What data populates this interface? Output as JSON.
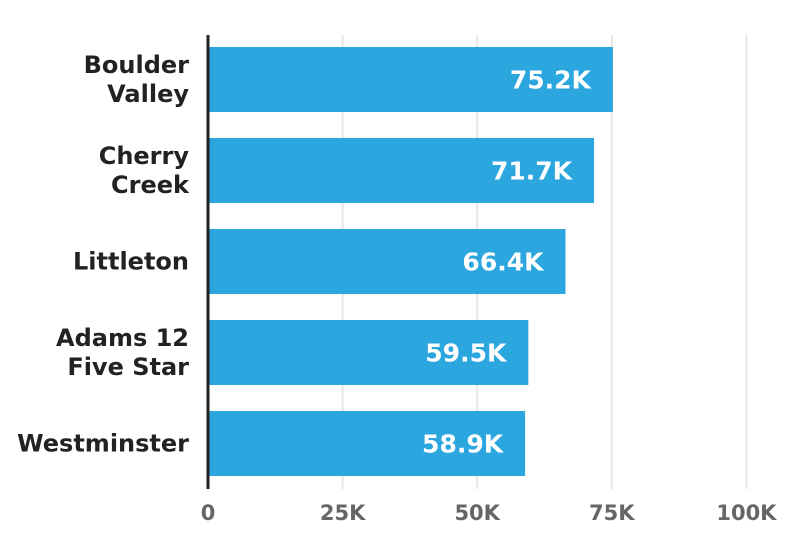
{
  "chart_data": {
    "type": "bar",
    "orientation": "horizontal",
    "categories": [
      [
        "Boulder",
        "Valley"
      ],
      [
        "Cherry",
        "Creek"
      ],
      [
        "Littleton"
      ],
      [
        "Adams 12",
        "Five Star"
      ],
      [
        "Westminster"
      ]
    ],
    "values": [
      75200,
      71700,
      66400,
      59500,
      58900
    ],
    "data_labels": [
      "75.2K",
      "71.7K",
      "66.4K",
      "59.5K",
      "58.9K"
    ],
    "xlim": [
      0,
      100000
    ],
    "xticks": [
      0,
      25000,
      50000,
      75000,
      100000
    ],
    "xtick_labels": [
      "0",
      "25K",
      "50K",
      "75K",
      "100K"
    ],
    "grid": true,
    "bar_color": "#2ba6df",
    "title": "",
    "xlabel": "",
    "ylabel": ""
  }
}
